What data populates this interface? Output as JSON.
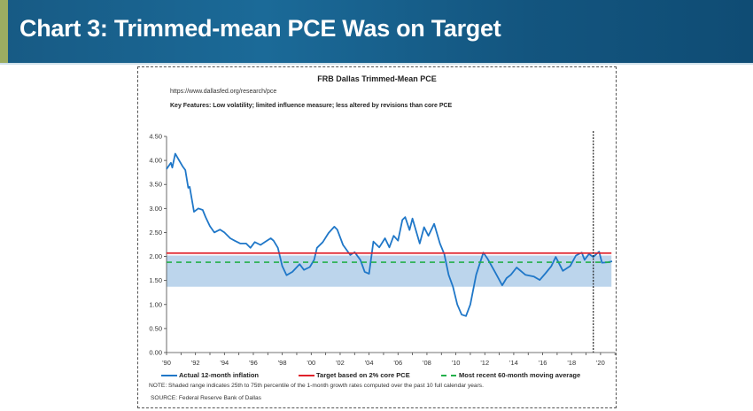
{
  "header": {
    "title": "Chart 3: Trimmed-mean PCE Was on Target"
  },
  "chart_data": {
    "type": "line",
    "title": "FRB Dallas Trimmed-Mean PCE",
    "url": "https://www.dallasfed.org/research/pce",
    "key_features": "Key Features: Low volatility; limited influence measure; less altered by revisions than core PCE",
    "ylim": [
      0,
      4.5
    ],
    "xlim": [
      1990,
      2021
    ],
    "yticks": [
      "0.00",
      "0.50",
      "1.00",
      "1.50",
      "2.00",
      "2.50",
      "3.00",
      "3.50",
      "4.00",
      "4.50"
    ],
    "xticks": [
      {
        "year": 1990,
        "label": "'90"
      },
      {
        "year": 1992,
        "label": "'92"
      },
      {
        "year": 1994,
        "label": "'94"
      },
      {
        "year": 1996,
        "label": "'96"
      },
      {
        "year": 1998,
        "label": "'98"
      },
      {
        "year": 2000,
        "label": "'00"
      },
      {
        "year": 2002,
        "label": "'02"
      },
      {
        "year": 2004,
        "label": "'04"
      },
      {
        "year": 2006,
        "label": "'06"
      },
      {
        "year": 2008,
        "label": "'08"
      },
      {
        "year": 2010,
        "label": "'10"
      },
      {
        "year": 2012,
        "label": "'12"
      },
      {
        "year": 2014,
        "label": "'14"
      },
      {
        "year": 2016,
        "label": "'16"
      },
      {
        "year": 2018,
        "label": "'18"
      },
      {
        "year": 2020,
        "label": "'20"
      }
    ],
    "series": [
      {
        "name": "Actual 12-month inflation",
        "color": "#1f77c8",
        "x": [
          1990.0,
          1990.3,
          1990.4,
          1990.6,
          1991.1,
          1991.3,
          1991.5,
          1991.6,
          1991.9,
          1992.2,
          1992.5,
          1992.7,
          1993.0,
          1993.3,
          1993.7,
          1994.0,
          1994.4,
          1994.7,
          1995.1,
          1995.5,
          1995.8,
          1996.1,
          1996.5,
          1996.8,
          1997.2,
          1997.4,
          1997.7,
          1998.0,
          1998.3,
          1998.7,
          1999.2,
          1999.5,
          1999.9,
          2000.2,
          2000.4,
          2000.8,
          2001.2,
          2001.6,
          2001.8,
          2002.2,
          2002.7,
          2003.0,
          2003.4,
          2003.7,
          2004.0,
          2004.3,
          2004.7,
          2005.1,
          2005.4,
          2005.7,
          2006.0,
          2006.3,
          2006.5,
          2006.8,
          2007.0,
          2007.5,
          2007.8,
          2008.1,
          2008.5,
          2008.9,
          2009.2,
          2009.5,
          2009.8,
          2010.1,
          2010.4,
          2010.7,
          2011.0,
          2011.4,
          2011.9,
          2012.2,
          2012.7,
          2013.2,
          2013.5,
          2013.8,
          2014.2,
          2014.8,
          2015.4,
          2015.8,
          2016.2,
          2016.6,
          2016.9,
          2017.4,
          2017.9,
          2018.3,
          2018.7,
          2018.9,
          2019.2,
          2019.5,
          2019.9,
          2020.1,
          2020.5,
          2020.8
        ],
        "values": [
          3.82,
          3.95,
          3.85,
          4.14,
          3.88,
          3.8,
          3.43,
          3.45,
          2.93,
          3.0,
          2.97,
          2.82,
          2.63,
          2.5,
          2.56,
          2.5,
          2.38,
          2.33,
          2.27,
          2.27,
          2.18,
          2.3,
          2.24,
          2.3,
          2.38,
          2.33,
          2.18,
          1.8,
          1.61,
          1.68,
          1.84,
          1.72,
          1.78,
          1.93,
          2.18,
          2.3,
          2.49,
          2.62,
          2.56,
          2.24,
          2.03,
          2.09,
          1.93,
          1.68,
          1.64,
          2.31,
          2.19,
          2.38,
          2.19,
          2.43,
          2.33,
          2.76,
          2.82,
          2.55,
          2.79,
          2.27,
          2.61,
          2.43,
          2.68,
          2.27,
          2.05,
          1.62,
          1.37,
          1.0,
          0.79,
          0.76,
          1.0,
          1.62,
          2.08,
          1.95,
          1.68,
          1.4,
          1.55,
          1.62,
          1.77,
          1.62,
          1.58,
          1.51,
          1.65,
          1.8,
          1.99,
          1.7,
          1.8,
          2.02,
          2.08,
          1.93,
          2.05,
          1.99,
          2.1,
          1.87,
          1.88,
          1.9
        ]
      },
      {
        "name": "Target based on 2% core PCE",
        "color": "#e0202a",
        "value": 2.07
      },
      {
        "name": "Most recent 60-month moving average",
        "color": "#22b04a",
        "value": 1.88
      }
    ],
    "shaded_range": {
      "low": 1.37,
      "high": 2.02,
      "color": "#bcd5ec"
    },
    "vertical_marker_year": 2019.5,
    "note": "NOTE: Shaded range indicates 25th to 75th percentile of the 1-month growth rates computed over the past 10 full calendar years.",
    "source": "SOURCE: Federal Reserve  Bank of Dallas"
  }
}
